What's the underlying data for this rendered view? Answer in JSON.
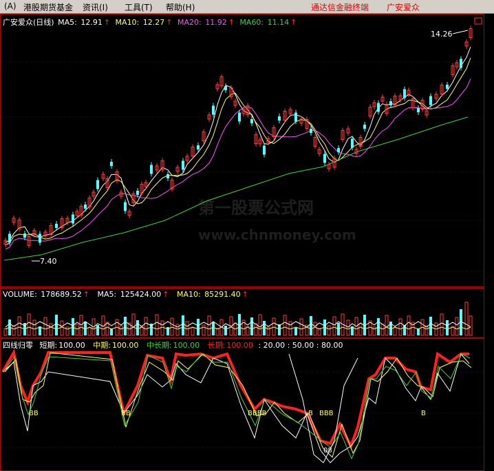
{
  "menu": {
    "items": [
      "(A)",
      "港股期货基金",
      "资讯(I)",
      "工具(T)",
      "帮助(H)"
    ],
    "app_title": "通达信金融终端",
    "stock_title": "广安爱众"
  },
  "price_panel": {
    "name": "广安爱众(日线)",
    "ma5": {
      "label": "MA5:",
      "value": "12.91",
      "color": "#ffffff"
    },
    "ma10": {
      "label": "MA10:",
      "value": "12.27",
      "color": "#ffff66"
    },
    "ma20": {
      "label": "MA20:",
      "value": "11.92",
      "color": "#ff50ff"
    },
    "ma60": {
      "label": "MA60:",
      "value": "11.14",
      "color": "#40d040"
    },
    "high_label": "14.26",
    "low_label": "7.40",
    "watermark": "第一股票公式网",
    "watermark_url": "www.chnmoney.com"
  },
  "volume_panel": {
    "label": "VOLUME:",
    "value": "178689.52",
    "ma5_label": "MA5:",
    "ma5_value": "125424.00",
    "ma10_label": "MA10:",
    "ma10_value": "85291.40"
  },
  "indicator_panel": {
    "name": "四线归零",
    "short": {
      "label": "短期:",
      "value": "100.00",
      "color": "#ffffff"
    },
    "mid": {
      "label": "中期:",
      "value": "100.00",
      "color": "#ffff66"
    },
    "midlong": {
      "label": "中长期:",
      "value": "100.00",
      "color": "#40d040"
    },
    "long": {
      "label": "长期:",
      "value": "100.00",
      "color": "#ff2020"
    },
    "levels": ": 20.00 : 50.00 : 80.00",
    "bb_labels": [
      "BB",
      "BB",
      "BBBB",
      "B",
      "BBB",
      "B"
    ],
    "bottom_label": "08"
  },
  "colors": {
    "up": "#ff3a3a",
    "down": "#54ffff",
    "grid": "#8b0000",
    "panel_border": "#b00000"
  }
}
